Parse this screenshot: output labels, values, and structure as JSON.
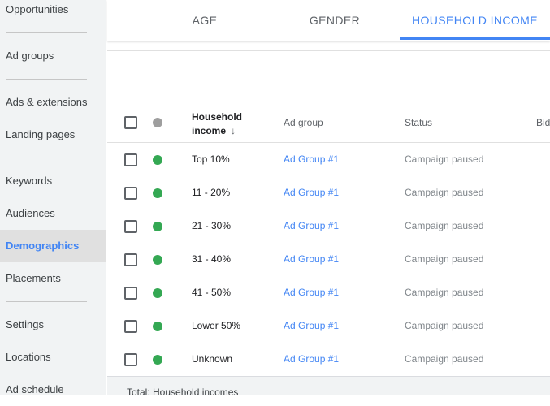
{
  "sidebar": {
    "items": [
      {
        "label": "Opportunities"
      },
      {
        "label": "Ad groups"
      },
      {
        "label": "Ads & extensions"
      },
      {
        "label": "Landing pages"
      },
      {
        "label": "Keywords"
      },
      {
        "label": "Audiences"
      },
      {
        "label": "Demographics"
      },
      {
        "label": "Placements"
      },
      {
        "label": "Settings"
      },
      {
        "label": "Locations"
      },
      {
        "label": "Ad schedule"
      }
    ],
    "active": "Demographics"
  },
  "tabs": [
    {
      "label": "AGE"
    },
    {
      "label": "GENDER"
    },
    {
      "label": "HOUSEHOLD INCOME"
    }
  ],
  "active_tab": "HOUSEHOLD INCOME",
  "table": {
    "headers": {
      "income_line1": "Household",
      "income_line2": "income",
      "sort_icon": "↓",
      "ad_group": "Ad group",
      "status": "Status",
      "bid": "Bid"
    },
    "rows": [
      {
        "income": "Top 10%",
        "ad_group": "Ad Group #1",
        "status": "Campaign paused"
      },
      {
        "income": "11 - 20%",
        "ad_group": "Ad Group #1",
        "status": "Campaign paused"
      },
      {
        "income": "21 - 30%",
        "ad_group": "Ad Group #1",
        "status": "Campaign paused"
      },
      {
        "income": "31 - 40%",
        "ad_group": "Ad Group #1",
        "status": "Campaign paused"
      },
      {
        "income": "41 - 50%",
        "ad_group": "Ad Group #1",
        "status": "Campaign paused"
      },
      {
        "income": "Lower 50%",
        "ad_group": "Ad Group #1",
        "status": "Campaign paused"
      },
      {
        "income": "Unknown",
        "ad_group": "Ad Group #1",
        "status": "Campaign paused"
      }
    ],
    "total_label": "Total: Household incomes"
  },
  "colors": {
    "accent": "#4285f4",
    "status_enabled": "#34a853",
    "status_header": "#9e9e9e"
  }
}
